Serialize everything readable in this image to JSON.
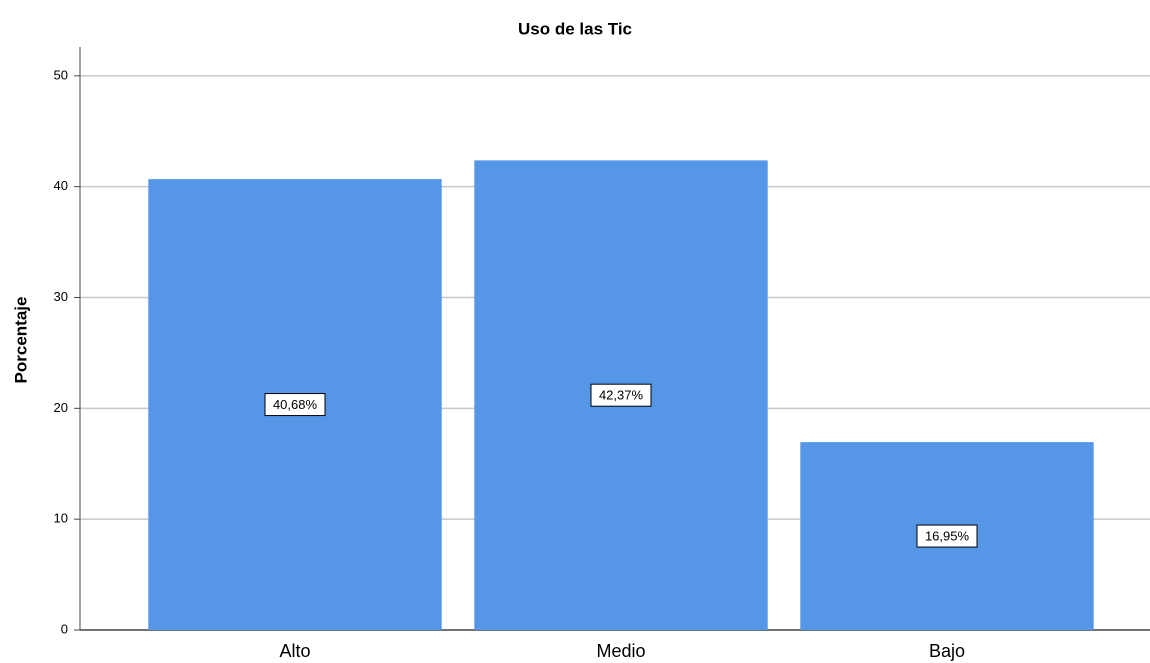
{
  "chart_data": {
    "type": "bar",
    "title": "Uso de las Tic",
    "y_label": "Porcentaje",
    "categories": [
      "Alto",
      "Medio",
      "Bajo"
    ],
    "values": [
      40.68,
      42.37,
      16.95
    ],
    "value_labels": [
      "40,68%",
      "42,37%",
      "16,95%"
    ],
    "color": "#5596e6",
    "ylim": [
      0,
      52.6
    ],
    "yticks": [
      0,
      10,
      20,
      30,
      40,
      50
    ],
    "grid": true
  }
}
